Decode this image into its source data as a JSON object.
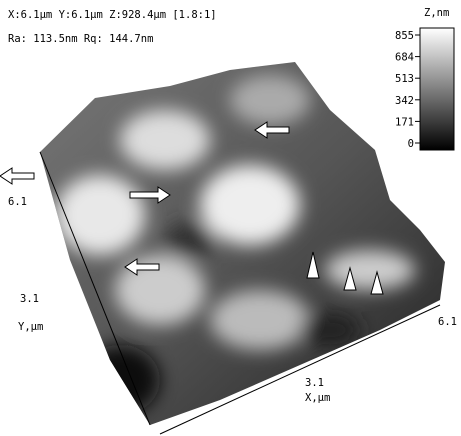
{
  "header": {
    "line1": "X:6.1µm  Y:6.1µm  Z:928.4µm [1.8:1]",
    "line2": "Ra: 113.5nm  Rq: 144.7nm"
  },
  "colorbar": {
    "title": "Z,nm",
    "ticks": [
      "855",
      "684",
      "513",
      "342",
      "171",
      "0"
    ]
  },
  "axes": {
    "y_top": "6.1",
    "y_mid": "3.1",
    "y_label": "Y,µm",
    "x_mid": "3.1",
    "x_label": "X,µm",
    "x_end": "6.1"
  }
}
